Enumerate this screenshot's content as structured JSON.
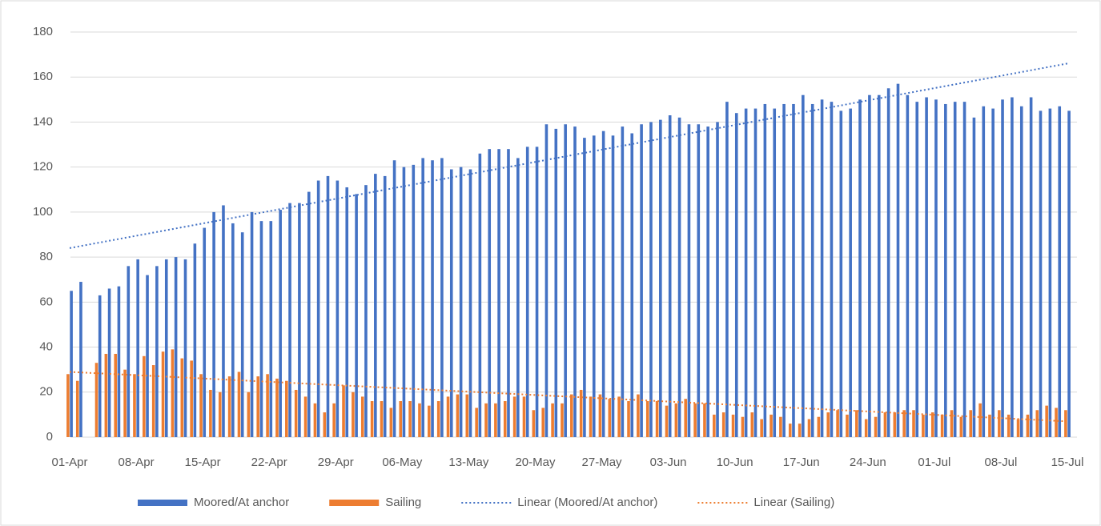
{
  "chart_data": {
    "type": "bar",
    "categories": [
      "01-Apr",
      null,
      null,
      null,
      null,
      null,
      null,
      "08-Apr",
      null,
      null,
      null,
      null,
      null,
      null,
      "15-Apr",
      null,
      null,
      null,
      null,
      null,
      null,
      "22-Apr",
      null,
      null,
      null,
      null,
      null,
      null,
      "29-Apr",
      null,
      null,
      null,
      null,
      null,
      null,
      "06-May",
      null,
      null,
      null,
      null,
      null,
      null,
      "13-May",
      null,
      null,
      null,
      null,
      null,
      null,
      "20-May",
      null,
      null,
      null,
      null,
      null,
      null,
      "27-May",
      null,
      null,
      null,
      null,
      null,
      null,
      "03-Jun",
      null,
      null,
      null,
      null,
      null,
      null,
      "10-Jun",
      null,
      null,
      null,
      null,
      null,
      null,
      "17-Jun",
      null,
      null,
      null,
      null,
      null,
      null,
      "24-Jun",
      null,
      null,
      null,
      null,
      null,
      null,
      "01-Jul",
      null,
      null,
      null,
      null,
      null,
      null,
      "08-Jul",
      null,
      null,
      null,
      null,
      null,
      null,
      "15-Jul"
    ],
    "series": [
      {
        "name": "Moored/At anchor",
        "color": "#4472c4",
        "values": [
          65,
          69,
          null,
          63,
          66,
          67,
          76,
          79,
          72,
          76,
          79,
          80,
          79,
          86,
          93,
          100,
          103,
          95,
          91,
          100,
          96,
          96,
          101,
          104,
          104,
          109,
          114,
          116,
          114,
          111,
          108,
          112,
          117,
          116,
          123,
          120,
          121,
          124,
          123,
          124,
          119,
          120,
          119,
          126,
          128,
          128,
          128,
          124,
          129,
          129,
          139,
          137,
          139,
          138,
          133,
          134,
          136,
          134,
          138,
          135,
          139,
          140,
          141,
          143,
          142,
          139,
          139,
          138,
          140,
          149,
          144,
          146,
          146,
          148,
          146,
          148,
          148,
          152,
          148,
          150,
          149,
          145,
          146,
          150,
          152,
          152,
          155,
          157,
          152,
          149,
          151,
          150,
          148,
          149,
          149,
          142,
          147,
          146,
          150,
          151,
          147,
          151,
          145,
          146,
          147,
          145
        ]
      },
      {
        "name": "Sailing",
        "color": "#ed7d31",
        "values": [
          28,
          25,
          null,
          33,
          37,
          37,
          30,
          28,
          36,
          32,
          38,
          39,
          35,
          34,
          28,
          21,
          20,
          27,
          29,
          20,
          27,
          28,
          26,
          25,
          21,
          18,
          15,
          11,
          15,
          23,
          20,
          18,
          16,
          16,
          13,
          16,
          16,
          15,
          14,
          16,
          18,
          19,
          19,
          13,
          15,
          15,
          16,
          18,
          18,
          12,
          13,
          15,
          15,
          19,
          21,
          18,
          19,
          17,
          18,
          16,
          19,
          16,
          16,
          14,
          15,
          17,
          15,
          15,
          10,
          11,
          10,
          9,
          11,
          8,
          10,
          9,
          6,
          6,
          8,
          9,
          11,
          12,
          10,
          12,
          8,
          9,
          11,
          11,
          12,
          12,
          10,
          11,
          10,
          12,
          9,
          12,
          15,
          10,
          12,
          10,
          8,
          10,
          12,
          14,
          13,
          12
        ]
      }
    ],
    "trendlines": [
      {
        "name": "Linear (Moored/At anchor)",
        "color": "#4472c4",
        "values": [
          84,
          166
        ]
      },
      {
        "name": "Linear (Sailing)",
        "color": "#ed7d31",
        "values": [
          29,
          7
        ]
      }
    ],
    "ylim": [
      0,
      180
    ],
    "yticks": [
      0,
      20,
      40,
      60,
      80,
      100,
      120,
      140,
      160,
      180
    ],
    "grid": true
  }
}
